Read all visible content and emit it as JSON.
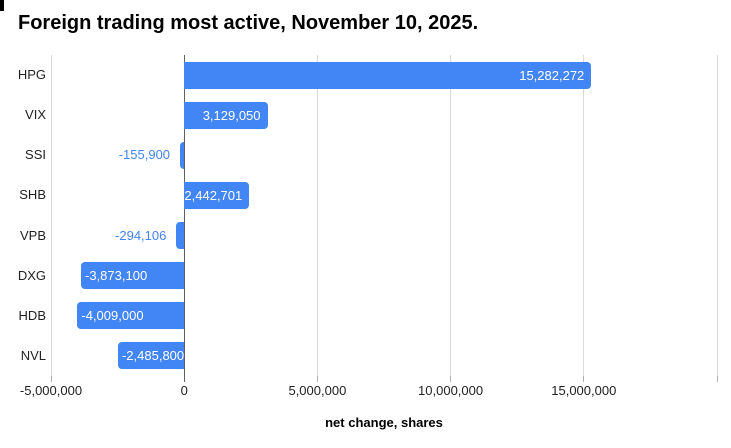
{
  "chart_data": {
    "type": "bar",
    "orientation": "horizontal",
    "title": "Foreign trading most active, November 10, 2025.",
    "categories": [
      "HPG",
      "VIX",
      "SSI",
      "SHB",
      "VPB",
      "DXG",
      "HDB",
      "NVL"
    ],
    "values": [
      15282272,
      3129050,
      -155900,
      2442701,
      -294106,
      -3873100,
      -4009000,
      -2485800
    ],
    "value_labels": [
      "15,282,272",
      "3,129,050",
      "-155,900",
      "2,442,701",
      "-294,106",
      "-3,873,100",
      "-4,009,000",
      "-2,485,800"
    ],
    "xlabel": "net change, shares",
    "xlim": [
      -5000000,
      20000000
    ],
    "x_ticks": [
      -5000000,
      0,
      5000000,
      10000000,
      15000000
    ],
    "x_tick_labels": [
      "-5,000,000",
      "0",
      "5,000,000",
      "10,000,000",
      "15,000,000"
    ],
    "x_gridlines": [
      -5000000,
      0,
      5000000,
      10000000,
      15000000,
      20000000
    ],
    "grid": true,
    "legend_position": "none",
    "colors": {
      "bar": "#4285F4",
      "label_inside": "#ffffff",
      "label_outside": "#4285F4",
      "gridline": "#d9d9d9",
      "zero_axis": "#616161",
      "tick_stub": "#b0b0b0",
      "text": "#212121"
    }
  }
}
